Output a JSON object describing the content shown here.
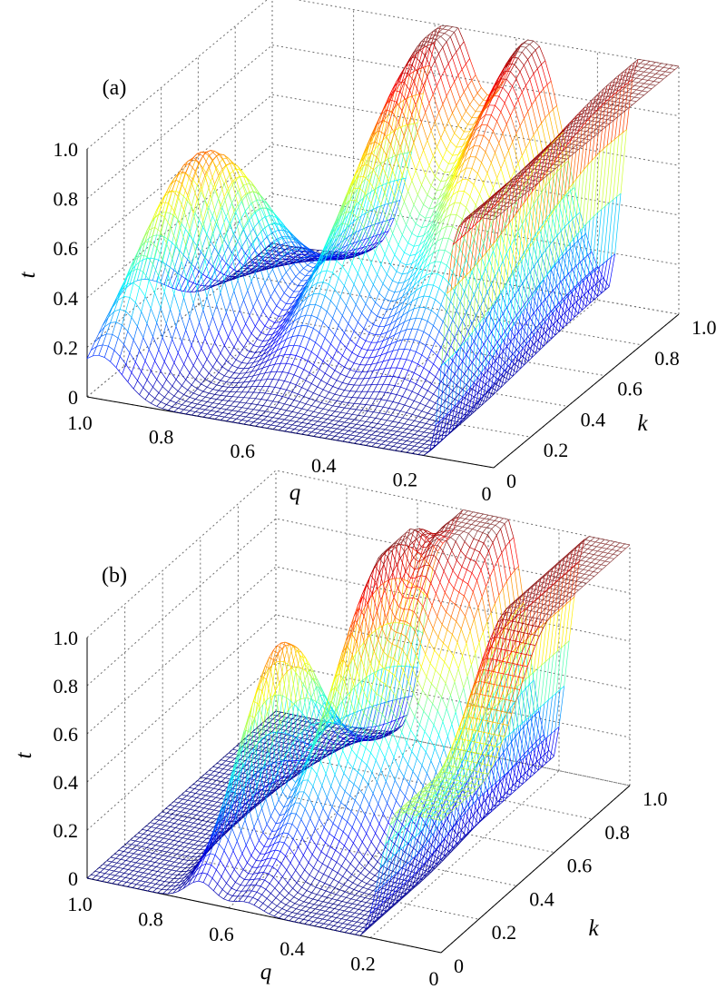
{
  "chart_data": [
    {
      "type": "surface",
      "panel_label": "(a)",
      "zlabel": "t",
      "xlabel": "q",
      "ylabel": "k",
      "q_ticks": [
        "1.0",
        "0.8",
        "0.6",
        "0.4",
        "0.2",
        "0"
      ],
      "k_ticks": [
        "0",
        "0.2",
        "0.4",
        "0.6",
        "0.8",
        "1.0"
      ],
      "t_ticks": [
        "0",
        "0.2",
        "0.4",
        "0.6",
        "0.8",
        "1.0"
      ],
      "xlim": [
        1.0,
        0.0
      ],
      "ylim": [
        0,
        1.0
      ],
      "zlim": [
        0,
        1.0
      ],
      "colormap": "jet",
      "grid": true,
      "features": [
        {
          "q": 0.98,
          "k_max": 0.4,
          "t_max": 0.78
        },
        {
          "q": 0.62,
          "k_max": 0.9,
          "t_max": 1.0
        },
        {
          "q": 0.37,
          "k_max": 1.0,
          "t_max": 1.0
        },
        {
          "q_plateau_below": 0.14,
          "t": 1.0
        }
      ]
    },
    {
      "type": "surface",
      "panel_label": "(b)",
      "zlabel": "t",
      "xlabel": "q",
      "ylabel": "k",
      "q_ticks": [
        "1.0",
        "0.8",
        "0.6",
        "0.4",
        "0.2",
        "0"
      ],
      "k_ticks": [
        "0",
        "0.2",
        "0.4",
        "0.6",
        "0.8",
        "1.0"
      ],
      "t_ticks": [
        "0",
        "0.2",
        "0.4",
        "0.6",
        "0.8",
        "1.0"
      ],
      "xlim": [
        1.0,
        0.0
      ],
      "ylim": [
        0,
        1.0
      ],
      "zlim": [
        0,
        1.0
      ],
      "colormap": "jet",
      "grid": true,
      "features": [
        {
          "q": 0.68,
          "k_max": 0.42,
          "t_max": 0.78
        },
        {
          "q": 0.55,
          "k_max": 0.75,
          "t_max": 0.9
        },
        {
          "q": 0.45,
          "k_max": 1.0,
          "t_max": 1.0
        },
        {
          "q_plateau_below": 0.2,
          "t": 1.0
        }
      ]
    }
  ]
}
